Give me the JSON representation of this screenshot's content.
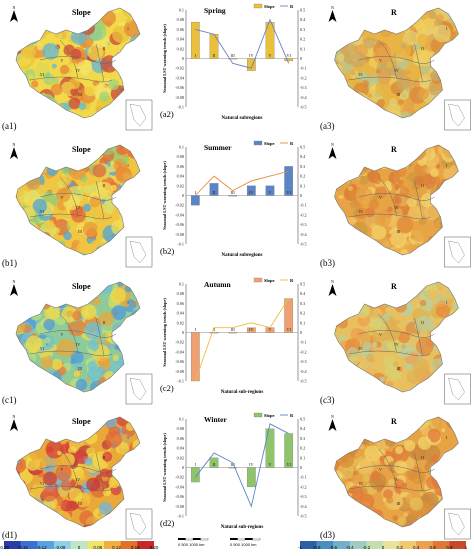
{
  "map_title_slope": "Slope",
  "map_title_r": "R",
  "north_letter": "N",
  "rows": [
    {
      "left_label": "(a1)",
      "chart_label": "(a2)",
      "right_label": "(a3)",
      "season": "Spring",
      "slope_series": "Slope",
      "r_series": "R",
      "slope_color": "#e9bf3c",
      "r_color": "#6f7fc0",
      "slope_values": [
        0.075,
        0.05,
        0.0,
        -0.025,
        0.075,
        -0.005
      ],
      "r_values": [
        0.3,
        0.25,
        -0.05,
        -0.1,
        0.4,
        -0.05
      ],
      "left_ticks": [
        "0.1",
        "0.08",
        "0.06",
        "0.04",
        "0.02",
        "0",
        "-0.02",
        "-0.04",
        "-0.06",
        "-0.08",
        "-0.1"
      ],
      "right_ticks": [
        "0.5",
        "0.4",
        "0.3",
        "0.2",
        "0.1",
        "0",
        "-0.1",
        "-0.2",
        "-0.3",
        "-0.4",
        "-0.5"
      ],
      "xlabel": "Natural subregions"
    },
    {
      "left_label": "(b1)",
      "chart_label": "(b2)",
      "right_label": "(b3)",
      "season": "Summer",
      "slope_series": "Slope",
      "r_series": "R",
      "slope_color": "#5a86c7",
      "r_color": "#ea8a36",
      "slope_values": [
        -0.02,
        0.025,
        0.0,
        0.02,
        0.02,
        0.06
      ],
      "r_values": [
        0.0,
        0.2,
        0.05,
        0.15,
        0.2,
        0.25
      ],
      "left_ticks": [
        "0.1",
        "0.08",
        "0.06",
        "0.04",
        "0.02",
        "0",
        "-0.02",
        "-0.04",
        "-0.06",
        "-0.08",
        "-0.1"
      ],
      "right_ticks": [
        "0.5",
        "0.4",
        "0.3",
        "0.2",
        "0.1",
        "0",
        "-0.1",
        "-0.2",
        "-0.3",
        "-0.4",
        "-0.5"
      ],
      "xlabel": "Natural subregions"
    },
    {
      "left_label": "(c1)",
      "chart_label": "(c2)",
      "right_label": "(c3)",
      "season": "Autumn",
      "slope_series": "Slope",
      "r_series": "R",
      "slope_color": "#f0a070",
      "r_color": "#e9bf3c",
      "slope_values": [
        -0.1,
        0.0,
        0.0,
        0.01,
        0.01,
        0.07
      ],
      "r_values": [
        -0.5,
        0.05,
        0.05,
        0.1,
        0.05,
        0.35
      ],
      "left_ticks": [
        "0.1",
        "0.08",
        "0.06",
        "0.04",
        "0.02",
        "0",
        "-0.02",
        "-0.04",
        "-0.06",
        "-0.08",
        "-0.1"
      ],
      "right_ticks": [
        "0.5",
        "0.4",
        "0.3",
        "0.2",
        "0.1",
        "0",
        "-0.1",
        "-0.2",
        "-0.3",
        "-0.4",
        "-0.5"
      ],
      "xlabel": "Natural sub-regions"
    },
    {
      "left_label": "(d1)",
      "chart_label": "(d2)",
      "right_label": "(d3)",
      "season": "Winter",
      "slope_series": "Slope",
      "r_series": "R",
      "slope_color": "#8fc46a",
      "r_color": "#5a86c7",
      "slope_values": [
        -0.03,
        0.02,
        0.0,
        -0.04,
        0.08,
        0.07
      ],
      "r_values": [
        -0.1,
        0.15,
        0.05,
        -0.4,
        0.45,
        0.35
      ],
      "left_ticks": [
        "0.1",
        "0.08",
        "0.06",
        "0.04",
        "0.02",
        "0",
        "-0.02",
        "-0.04",
        "-0.06",
        "-0.08",
        "-0.1"
      ],
      "right_ticks": [
        "0.5",
        "0.4",
        "0.3",
        "0.2",
        "0.1",
        "0",
        "-0.1",
        "-0.2",
        "-0.3",
        "-0.4",
        "-0.5"
      ],
      "xlabel": "Natural sub-regions"
    }
  ],
  "categories": [
    "I",
    "II",
    "III",
    "IV",
    "V",
    "VI"
  ],
  "ylabel": "Seasonal LST warming trends (slope)",
  "region_labels": [
    "I",
    "II",
    "III",
    "IV",
    "V",
    "VI"
  ],
  "slope_legend_ticks": [
    "-0.20",
    "-0.16",
    "-0.12",
    "-0.08",
    "0",
    "0.08",
    "0.12",
    "0.16",
    "0.20"
  ],
  "r_legend_ticks": [
    "-1",
    "-0.8",
    "-0.6",
    "-0.4",
    "-0.2",
    "0",
    "0.2",
    "0.4",
    "0.6",
    "0.8",
    "1"
  ],
  "scale_text": "0  500 1000 km",
  "chart_data": [
    {
      "type": "bar+line",
      "title": "Spring",
      "categories": [
        "I",
        "II",
        "III",
        "IV",
        "V",
        "VI"
      ],
      "series": [
        {
          "name": "Slope",
          "values": [
            0.075,
            0.05,
            0.0,
            -0.025,
            0.075,
            -0.005
          ]
        },
        {
          "name": "R",
          "values": [
            0.3,
            0.25,
            -0.05,
            -0.1,
            0.4,
            -0.05
          ]
        }
      ],
      "ylabel": "Seasonal LST warming trends (slope)",
      "xlabel": "Natural subregions",
      "ylim": [
        -0.1,
        0.1
      ],
      "y2lim": [
        -0.5,
        0.5
      ]
    },
    {
      "type": "bar+line",
      "title": "Summer",
      "categories": [
        "I",
        "II",
        "III",
        "IV",
        "V",
        "VI"
      ],
      "series": [
        {
          "name": "Slope",
          "values": [
            -0.02,
            0.025,
            0.0,
            0.02,
            0.02,
            0.06
          ]
        },
        {
          "name": "R",
          "values": [
            0.0,
            0.2,
            0.05,
            0.15,
            0.2,
            0.25
          ]
        }
      ],
      "ylabel": "Seasonal LST warming trends (slope)",
      "xlabel": "Natural subregions",
      "ylim": [
        -0.1,
        0.1
      ],
      "y2lim": [
        -0.5,
        0.5
      ]
    },
    {
      "type": "bar+line",
      "title": "Autumn",
      "categories": [
        "I",
        "II",
        "III",
        "IV",
        "V",
        "VI"
      ],
      "series": [
        {
          "name": "Slope",
          "values": [
            -0.1,
            0.0,
            0.0,
            0.01,
            0.01,
            0.07
          ]
        },
        {
          "name": "R",
          "values": [
            -0.5,
            0.05,
            0.05,
            0.1,
            0.05,
            0.35
          ]
        }
      ],
      "ylabel": "Seasonal LST warming trends (slope)",
      "xlabel": "Natural sub-regions",
      "ylim": [
        -0.1,
        0.1
      ],
      "y2lim": [
        -0.5,
        0.5
      ]
    },
    {
      "type": "bar+line",
      "title": "Winter",
      "categories": [
        "I",
        "II",
        "III",
        "IV",
        "V",
        "VI"
      ],
      "series": [
        {
          "name": "Slope",
          "values": [
            -0.03,
            0.02,
            0.0,
            -0.04,
            0.08,
            0.07
          ]
        },
        {
          "name": "R",
          "values": [
            -0.1,
            0.15,
            0.05,
            -0.4,
            0.45,
            0.35
          ]
        }
      ],
      "ylabel": "Seasonal LST warming trends (slope)",
      "xlabel": "Natural sub-regions",
      "ylim": [
        -0.1,
        0.1
      ],
      "y2lim": [
        -0.5,
        0.5
      ]
    }
  ]
}
